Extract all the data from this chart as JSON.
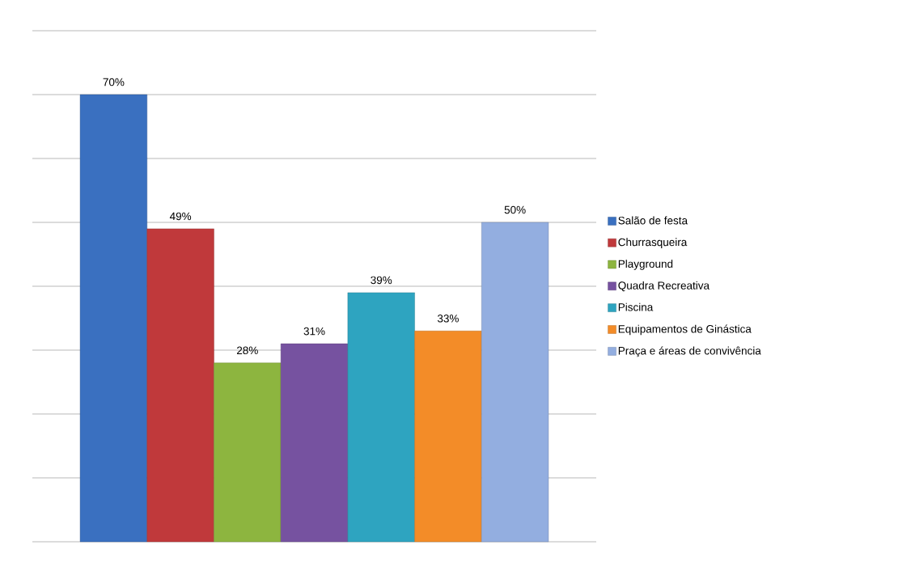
{
  "chart_data": {
    "type": "bar",
    "categories": [
      null
    ],
    "series": [
      {
        "name": "Salão de festa",
        "color": "#3a70c0",
        "values": [
          70
        ],
        "value_labels": [
          "70%"
        ]
      },
      {
        "name": "Churrasqueira",
        "color": "#c0393b",
        "values": [
          49
        ],
        "value_labels": [
          "49%"
        ]
      },
      {
        "name": "Playground",
        "color": "#8db53f",
        "values": [
          28
        ],
        "value_labels": [
          "28%"
        ]
      },
      {
        "name": "Quadra Recreativa",
        "color": "#7652a0",
        "values": [
          31
        ],
        "value_labels": [
          "31%"
        ]
      },
      {
        "name": "Piscina",
        "color": "#2ea4c0",
        "values": [
          39
        ],
        "value_labels": [
          "39%"
        ]
      },
      {
        "name": "Equipamentos de Ginástica",
        "color": "#f38c28",
        "values": [
          33
        ],
        "value_labels": [
          "33%"
        ]
      },
      {
        "name": "Praça e áreas de convivência",
        "color": "#93aee0",
        "values": [
          50
        ],
        "value_labels": [
          "50%"
        ]
      }
    ],
    "ylim": [
      0,
      80
    ],
    "yticks": [
      {
        "value": 0,
        "label": null
      },
      {
        "value": 10,
        "label": null
      },
      {
        "value": 20,
        "label": null
      },
      {
        "value": 30,
        "label": null
      },
      {
        "value": 40,
        "label": null
      },
      {
        "value": 50,
        "label": null
      },
      {
        "value": 60,
        "label": null
      },
      {
        "value": 70,
        "label": null
      },
      {
        "value": 80,
        "label": null
      }
    ],
    "grid": "y",
    "legend": "right"
  }
}
